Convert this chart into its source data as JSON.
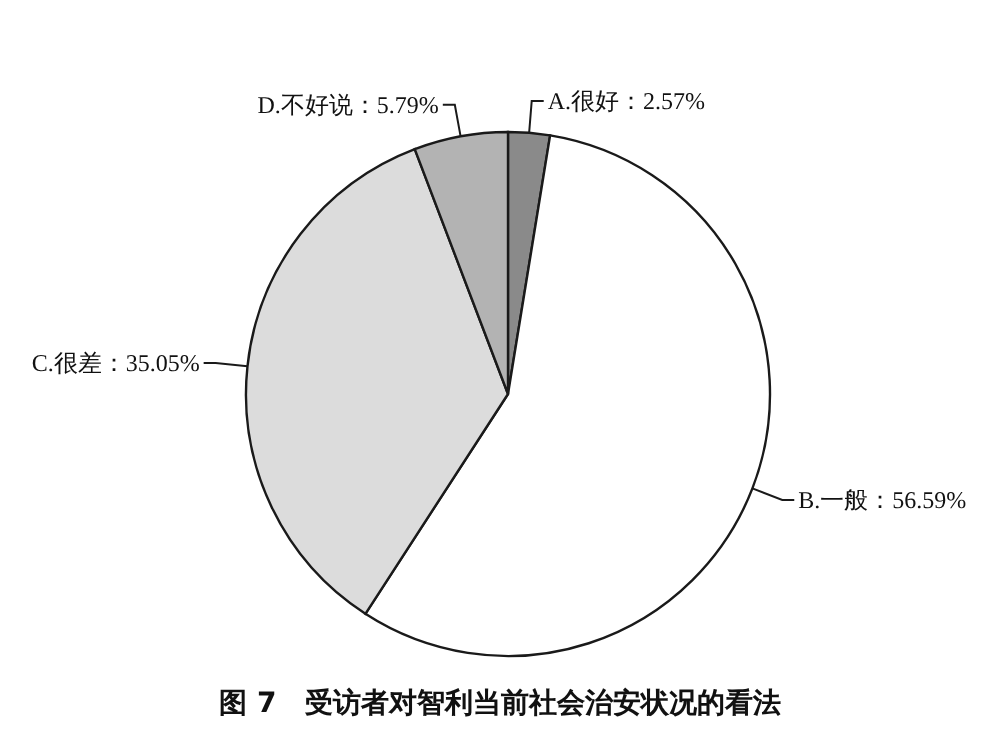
{
  "chart_data": {
    "type": "pie",
    "title": "图 7　受访者对智利当前社会治安状况的看法",
    "categories": [
      "A.很好",
      "B.一般",
      "C.很差",
      "D.不好说"
    ],
    "value_labels": [
      "2.57%",
      "56.59%",
      "35.05%",
      "5.79%"
    ],
    "values": [
      2.57,
      56.59,
      35.05,
      5.79
    ],
    "colors": [
      "#8a8a8a",
      "#ffffff",
      "#dcdcdc",
      "#b3b3b3"
    ]
  }
}
